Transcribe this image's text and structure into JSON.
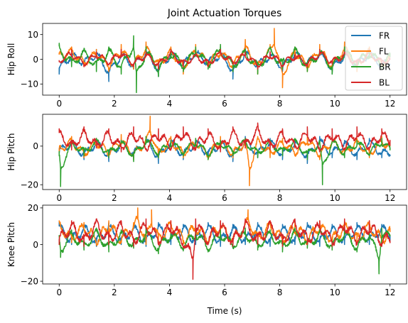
{
  "chart_data": {
    "type": "line",
    "title": "Joint Actuation Torques",
    "xlabel": "Time (s)",
    "xlim": [
      -0.6,
      12.6
    ],
    "x_ticks": [
      0,
      2,
      4,
      6,
      8,
      10,
      12
    ],
    "legend": {
      "placement": "top-right",
      "entries": [
        {
          "name": "FR",
          "color": "#1f77b4"
        },
        {
          "name": "FL",
          "color": "#ff7f0e"
        },
        {
          "name": "BR",
          "color": "#2ca02c"
        },
        {
          "name": "BL",
          "color": "#d62728"
        }
      ]
    },
    "subplots": [
      {
        "ylabel": "Hip Roll",
        "ylim": [
          -14.5,
          14.5
        ],
        "y_ticks": [
          -10,
          0,
          10
        ],
        "series": [
          {
            "name": "FR",
            "color": "#1f77b4",
            "baseline": -0.5,
            "amplitude": 3.0,
            "period": 0.45,
            "phase": 0.0,
            "x": [
              0.0,
              0.45,
              0.9,
              1.35,
              1.8,
              2.25,
              2.7,
              3.15,
              3.6,
              4.05,
              4.5,
              4.95,
              5.4,
              5.85,
              6.3,
              6.75,
              7.2,
              7.65,
              8.1,
              8.55,
              9.0,
              9.45,
              9.9,
              10.35,
              10.8,
              11.25,
              11.7,
              12.0
            ],
            "y": [
              -6,
              3,
              -2,
              4,
              -9,
              3,
              -4,
              5,
              -7,
              4,
              -3,
              5,
              -2,
              4,
              -8,
              5,
              -4,
              3,
              -5,
              4,
              -2,
              4,
              -6,
              3,
              -3,
              4,
              -4,
              -2
            ]
          },
          {
            "name": "FL",
            "color": "#ff7f0e",
            "baseline": 0.5,
            "amplitude": 3.0,
            "period": 0.4,
            "phase": 1.3,
            "x": [
              0.0,
              0.45,
              0.9,
              1.35,
              1.8,
              2.25,
              2.7,
              3.15,
              3.6,
              4.05,
              4.5,
              4.95,
              5.4,
              5.85,
              6.3,
              6.75,
              7.2,
              7.65,
              7.8,
              8.1,
              8.55,
              9.0,
              9.45,
              9.9,
              10.35,
              10.8,
              11.25,
              11.7,
              12.0
            ],
            "y": [
              2,
              5,
              -3,
              4,
              -5,
              6,
              -4,
              7,
              -4,
              5,
              -6,
              6,
              -3,
              5,
              -5,
              8,
              -6,
              6,
              12.5,
              -11.5,
              5,
              -5,
              6,
              -5,
              7,
              -5,
              5,
              -4,
              1
            ]
          },
          {
            "name": "BR",
            "color": "#2ca02c",
            "baseline": 0.5,
            "amplitude": 3.5,
            "period": 0.48,
            "phase": 2.2,
            "x": [
              0.0,
              0.45,
              0.9,
              1.35,
              1.8,
              2.25,
              2.7,
              2.8,
              3.15,
              3.6,
              4.05,
              4.5,
              4.95,
              5.4,
              5.85,
              6.3,
              6.75,
              7.2,
              7.65,
              8.1,
              8.55,
              9.0,
              9.45,
              9.9,
              10.35,
              10.8,
              11.25,
              11.7,
              12.0
            ],
            "y": [
              6.5,
              -3,
              4,
              -5,
              5,
              -6,
              9.5,
              -13.5,
              5,
              -7,
              4,
              -5,
              5,
              -4,
              6,
              -5,
              4,
              -6,
              5,
              -4,
              5,
              -5,
              4,
              -6,
              5,
              -3,
              4,
              -4,
              1
            ]
          },
          {
            "name": "BL",
            "color": "#d62728",
            "baseline": 0.0,
            "amplitude": 2.5,
            "period": 0.42,
            "phase": 3.1,
            "x": [
              0.0,
              0.45,
              0.9,
              1.35,
              1.8,
              2.25,
              2.7,
              3.15,
              3.6,
              4.05,
              4.5,
              4.95,
              5.4,
              5.85,
              6.3,
              6.75,
              7.2,
              7.65,
              8.1,
              8.55,
              9.0,
              9.45,
              9.9,
              10.35,
              10.8,
              11.25,
              11.7,
              12.0
            ],
            "y": [
              -1,
              4,
              -3,
              3,
              -2,
              4,
              -3,
              3,
              -4,
              4,
              -3,
              2,
              -3,
              4,
              -2,
              3,
              -4,
              3,
              -3,
              2,
              -3,
              4,
              -2,
              3,
              -3,
              4,
              -2,
              0
            ]
          }
        ]
      },
      {
        "ylabel": "Hip Pitch",
        "ylim": [
          -22.5,
          16.5
        ],
        "y_ticks": [
          -20,
          0
        ],
        "series": [
          {
            "name": "FR",
            "color": "#1f77b4",
            "baseline": -1.0,
            "amplitude": 4.0,
            "period": 0.45,
            "phase": 0.3,
            "x": [
              0.0,
              0.45,
              0.9,
              1.35,
              1.8,
              2.25,
              2.7,
              3.15,
              3.6,
              4.05,
              4.5,
              4.95,
              5.4,
              5.85,
              6.3,
              6.75,
              7.2,
              7.65,
              8.1,
              8.55,
              9.0,
              9.45,
              9.9,
              10.35,
              10.8,
              11.25,
              11.7,
              12.0
            ],
            "y": [
              -4,
              3,
              -7,
              4,
              -8,
              3,
              -6,
              5,
              -9,
              4,
              -7,
              4,
              -6,
              3,
              -8,
              5,
              -6,
              4,
              -7,
              3,
              -9,
              5,
              -6,
              3,
              -7,
              4,
              -6,
              -5
            ]
          },
          {
            "name": "FL",
            "color": "#ff7f0e",
            "baseline": -1.0,
            "amplitude": 4.0,
            "period": 0.4,
            "phase": 1.6,
            "x": [
              0.0,
              0.45,
              0.9,
              1.35,
              1.8,
              2.25,
              2.7,
              3.15,
              3.3,
              3.6,
              4.05,
              4.5,
              4.95,
              5.4,
              5.85,
              6.3,
              6.75,
              6.9,
              7.2,
              7.65,
              8.1,
              8.55,
              9.0,
              9.45,
              9.9,
              10.35,
              10.8,
              11.25,
              11.7,
              12.0
            ],
            "y": [
              -3,
              5,
              -6,
              4,
              -5,
              6,
              -7,
              5,
              15.5,
              -6,
              5,
              -6,
              4,
              -7,
              5,
              -6,
              4,
              -20.5,
              5,
              -6,
              4,
              -5,
              6,
              -7,
              5,
              -5,
              4,
              -6,
              5,
              0
            ]
          },
          {
            "name": "BR",
            "color": "#2ca02c",
            "baseline": -0.5,
            "amplitude": 3.5,
            "period": 0.48,
            "phase": 2.5,
            "x": [
              0.0,
              0.05,
              0.45,
              0.9,
              1.35,
              1.8,
              2.25,
              2.7,
              3.15,
              3.6,
              4.05,
              4.5,
              4.95,
              5.4,
              5.85,
              6.3,
              6.75,
              7.2,
              7.65,
              8.1,
              8.55,
              9.0,
              9.45,
              9.55,
              9.9,
              10.35,
              10.8,
              11.25,
              11.7,
              12.0
            ],
            "y": [
              -5,
              -21,
              3,
              -5,
              4,
              -6,
              3,
              -8,
              5,
              -6,
              3,
              -5,
              4,
              -7,
              3,
              -5,
              4,
              -6,
              3,
              -5,
              4,
              -7,
              3,
              -20,
              4,
              -6,
              3,
              -5,
              4,
              -2
            ]
          },
          {
            "name": "BL",
            "color": "#d62728",
            "baseline": 2.0,
            "amplitude": 5.0,
            "period": 0.42,
            "phase": 0.9,
            "x": [
              0.0,
              0.45,
              0.9,
              1.35,
              1.8,
              2.25,
              2.7,
              3.15,
              3.6,
              4.05,
              4.5,
              4.95,
              5.4,
              5.85,
              6.3,
              6.75,
              7.2,
              7.65,
              8.1,
              8.55,
              9.0,
              9.45,
              9.9,
              10.35,
              10.8,
              11.25,
              11.7,
              12.0
            ],
            "y": [
              9,
              -2,
              10,
              -1,
              9,
              -3,
              10,
              -2,
              9,
              -1,
              10,
              -2,
              9,
              -3,
              10,
              -1,
              12,
              -2,
              9,
              -1,
              10,
              -3,
              9,
              -1,
              10,
              -2,
              9,
              3
            ]
          }
        ]
      },
      {
        "ylabel": "Knee Pitch",
        "ylim": [
          -21.5,
          21.5
        ],
        "y_ticks": [
          -20,
          0,
          20
        ],
        "series": [
          {
            "name": "FR",
            "color": "#1f77b4",
            "baseline": 5.0,
            "amplitude": 5.5,
            "period": 0.45,
            "phase": 0.5,
            "x": [
              0.0,
              0.45,
              0.9,
              1.35,
              1.8,
              2.25,
              2.7,
              3.15,
              3.6,
              4.05,
              4.5,
              4.95,
              5.4,
              5.85,
              6.3,
              6.75,
              7.2,
              7.65,
              8.1,
              8.55,
              9.0,
              9.45,
              9.9,
              10.35,
              10.8,
              11.25,
              11.7,
              12.0
            ],
            "y": [
              12,
              0,
              11,
              -1,
              12,
              0,
              11,
              -1,
              12,
              0,
              11,
              0,
              12,
              -1,
              11,
              0,
              12,
              -1,
              11,
              0,
              12,
              -1,
              11,
              0,
              12,
              0,
              11,
              5
            ]
          },
          {
            "name": "FL",
            "color": "#ff7f0e",
            "baseline": 6.0,
            "amplitude": 6.0,
            "period": 0.4,
            "phase": 1.8,
            "x": [
              0.0,
              0.45,
              0.9,
              1.35,
              1.8,
              2.25,
              2.7,
              2.85,
              3.15,
              3.35,
              3.6,
              4.05,
              4.5,
              4.95,
              5.4,
              5.85,
              6.3,
              6.75,
              6.85,
              7.2,
              7.65,
              8.1,
              8.55,
              9.0,
              9.45,
              9.9,
              10.35,
              10.8,
              11.25,
              11.7,
              12.0
            ],
            "y": [
              13,
              1,
              12,
              0,
              13,
              1,
              12,
              20,
              0,
              19,
              1,
              13,
              0,
              12,
              1,
              13,
              0,
              12,
              19,
              1,
              13,
              0,
              12,
              1,
              13,
              0,
              12,
              1,
              13,
              0,
              7
            ]
          },
          {
            "name": "BR",
            "color": "#2ca02c",
            "baseline": 2.0,
            "amplitude": 5.0,
            "period": 0.48,
            "phase": 2.8,
            "x": [
              0.0,
              0.05,
              0.45,
              0.9,
              1.35,
              1.8,
              2.25,
              2.7,
              3.15,
              3.6,
              4.05,
              4.5,
              4.95,
              5.4,
              5.85,
              6.3,
              6.75,
              7.2,
              7.65,
              8.1,
              8.55,
              9.0,
              9.45,
              9.9,
              10.35,
              10.8,
              11.25,
              11.6,
              11.7,
              12.0
            ],
            "y": [
              5,
              -7,
              8,
              -3,
              9,
              -4,
              8,
              -2,
              9,
              -5,
              8,
              -3,
              9,
              -4,
              8,
              -2,
              9,
              -3,
              8,
              -4,
              9,
              -2,
              8,
              -3,
              9,
              -4,
              8,
              -16,
              9,
              5
            ]
          },
          {
            "name": "BL",
            "color": "#d62728",
            "baseline": 6.0,
            "amplitude": 6.5,
            "period": 0.42,
            "phase": 0.2,
            "x": [
              0.0,
              0.45,
              0.9,
              1.35,
              1.8,
              2.25,
              2.7,
              3.15,
              3.6,
              4.05,
              4.5,
              4.85,
              4.95,
              5.4,
              5.85,
              6.3,
              6.75,
              7.2,
              7.65,
              8.1,
              8.55,
              9.0,
              9.45,
              9.9,
              10.35,
              10.8,
              11.25,
              11.7,
              12.0
            ],
            "y": [
              0,
              13,
              -1,
              14,
              0,
              13,
              -1,
              14,
              0,
              13,
              -1,
              -19,
              14,
              0,
              13,
              -1,
              14,
              0,
              13,
              -1,
              14,
              0,
              13,
              -1,
              14,
              0,
              13,
              -1,
              1
            ]
          }
        ]
      }
    ]
  }
}
